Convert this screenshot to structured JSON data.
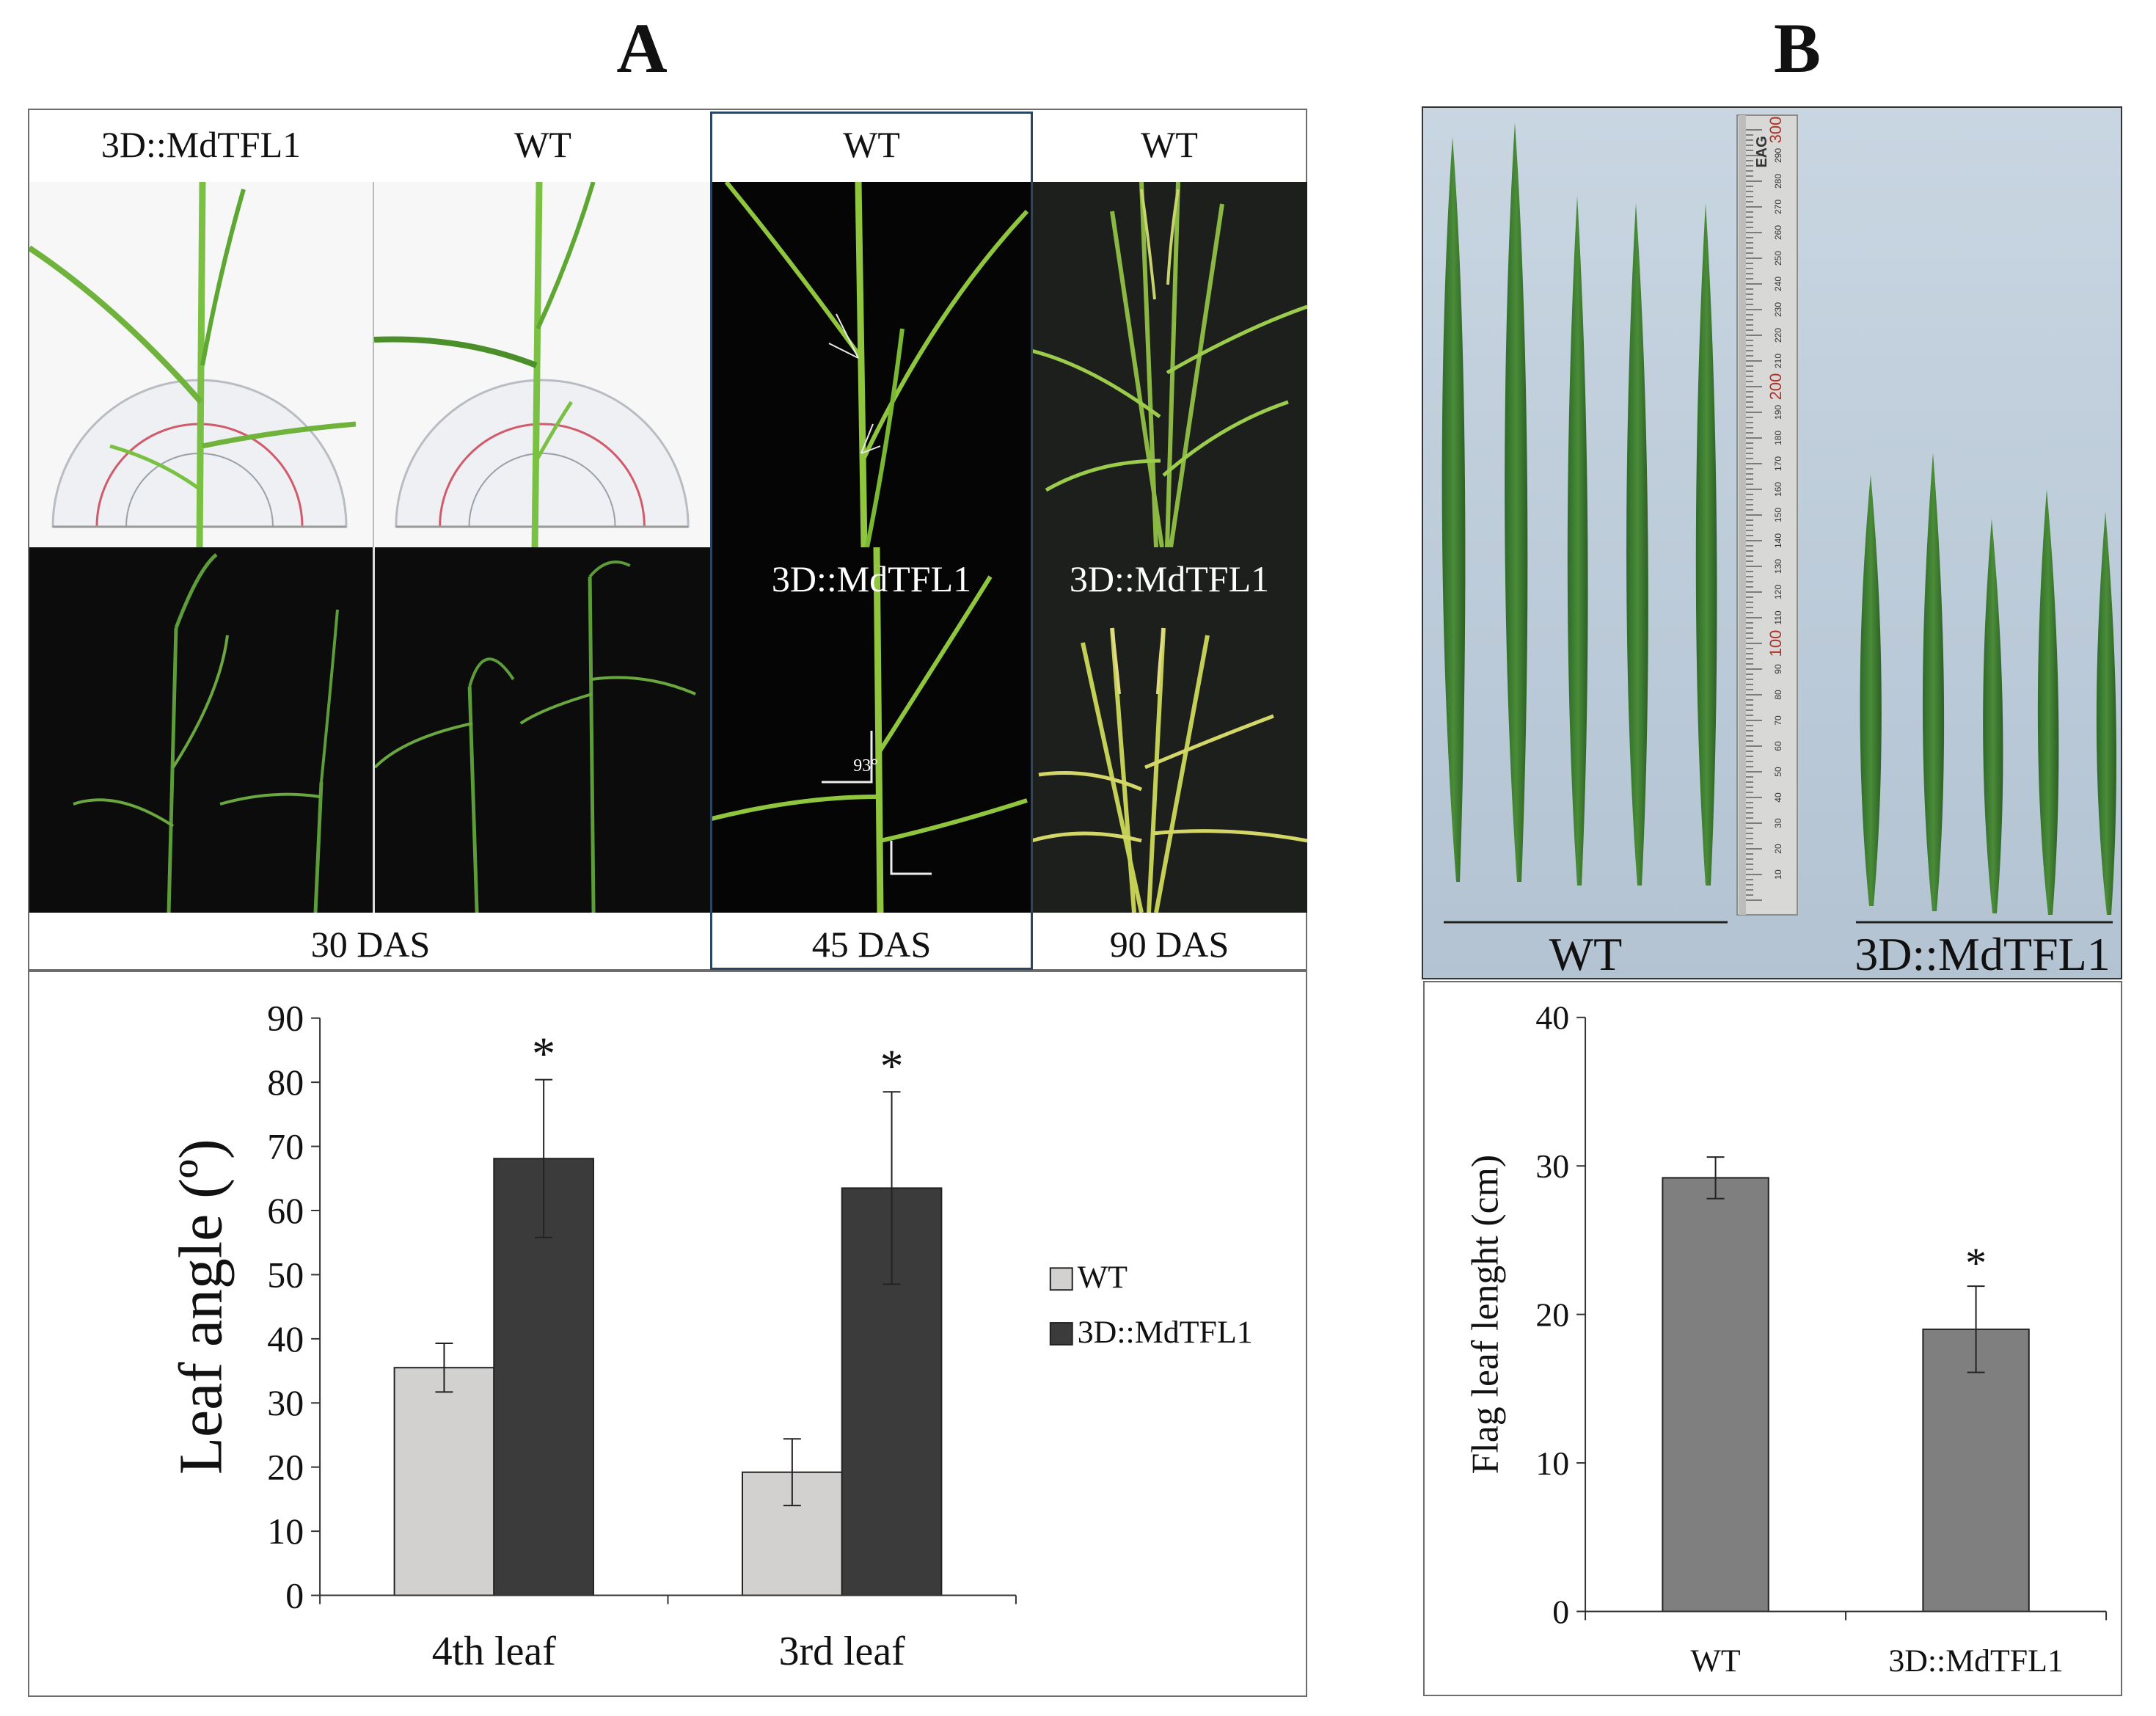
{
  "panels": {
    "a": "A",
    "b": "B"
  },
  "photo_a": {
    "header_labels": [
      "3D::MdTFL1",
      "WT",
      "WT",
      "WT"
    ],
    "mid_labels": [
      "3D::MdTFL1",
      "3D::MdTFL1"
    ],
    "angle_annotation": "93°",
    "footer_labels": [
      "30 DAS",
      "45 DAS",
      "90 DAS"
    ]
  },
  "photo_b": {
    "ruler_text": "EAG",
    "ruler_ticks": [
      "10",
      "20",
      "30",
      "40",
      "50",
      "60",
      "70",
      "80",
      "90",
      "100",
      "110",
      "120",
      "130",
      "140",
      "150",
      "160",
      "170",
      "180",
      "190",
      "200",
      "210",
      "220",
      "230",
      "240",
      "250",
      "260",
      "270",
      "280",
      "290",
      "300"
    ],
    "group_labels": [
      "WT",
      "3D::MdTFL1"
    ]
  },
  "chart_data": [
    {
      "type": "bar",
      "categories": [
        "4th leaf",
        "3rd leaf"
      ],
      "series": [
        {
          "name": "WT",
          "values": [
            35.5,
            19.2
          ],
          "errors": [
            3.8,
            5.2
          ],
          "color": "#d3d0d0",
          "significance": [
            "",
            ""
          ]
        },
        {
          "name": "3D::MdTFL1",
          "values": [
            68.1,
            63.5
          ],
          "errors": [
            12.3,
            15.0
          ],
          "color": "#3b3b3b",
          "significance": [
            "*",
            "*"
          ]
        }
      ],
      "ylabel": "Leaf angle (º)",
      "ylim": [
        0,
        90
      ],
      "yticks": [
        "0",
        "10",
        "20",
        "30",
        "40",
        "50",
        "60",
        "70",
        "80",
        "90"
      ],
      "legend": "right",
      "grid": false
    },
    {
      "type": "bar",
      "categories": [
        "WT",
        "3D::MdTFL1"
      ],
      "series": [
        {
          "values": [
            29.2,
            19.0
          ],
          "errors": [
            1.4,
            2.9
          ],
          "color": "#7f7f7f",
          "significance": [
            "",
            "*"
          ]
        }
      ],
      "ylabel": "Flag leaf lenght (cm)",
      "ylim": [
        0,
        40
      ],
      "yticks": [
        "0",
        "10",
        "20",
        "30",
        "40"
      ],
      "grid": false
    }
  ]
}
